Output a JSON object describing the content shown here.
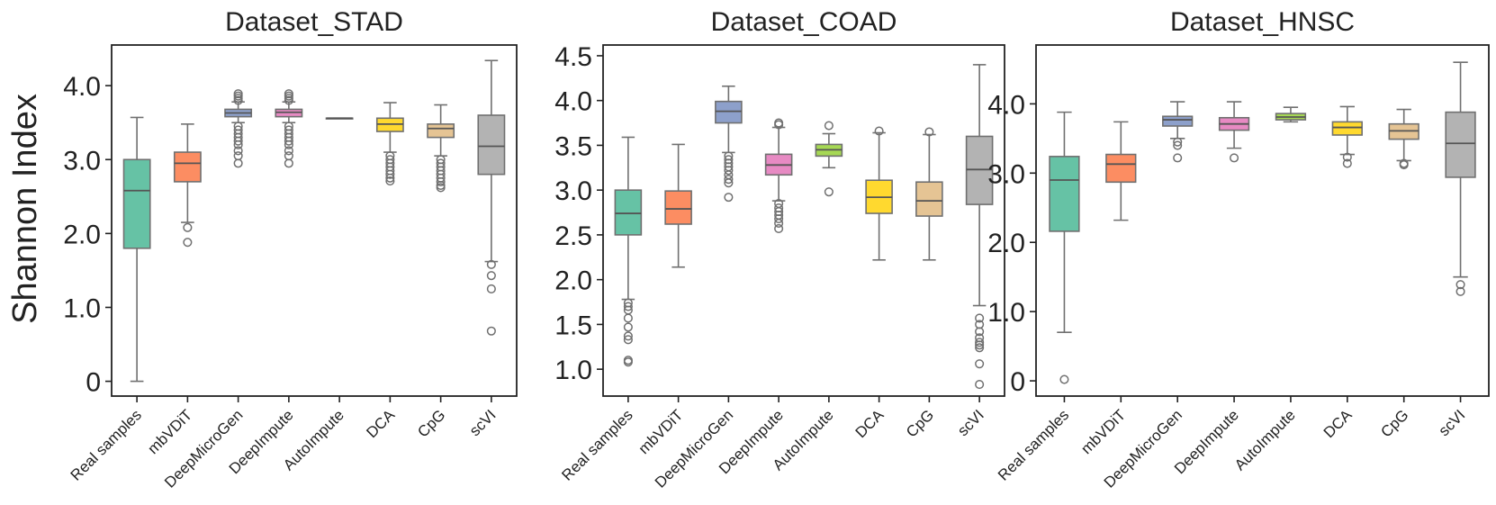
{
  "figure": {
    "ylabel": "Shannon Index"
  },
  "colors": {
    "Real samples": "#66c2a5",
    "mbVDiT": "#fc8d62",
    "DeepMicroGen": "#8da0cb",
    "DeepImpute": "#e78ac3",
    "AutoImpute": "#a6d854",
    "DCA": "#ffd92f",
    "CpG": "#e5c494",
    "scVI": "#b3b3b3",
    "median_line": "#555555",
    "whisker": "#707070",
    "axis": "#222222"
  },
  "chart_data": [
    {
      "type": "box",
      "title": "Dataset_STAD",
      "ylim": [
        -0.2,
        4.55
      ],
      "yticks": [
        0,
        1.0,
        2.0,
        3.0,
        4.0
      ],
      "ytick_labels": [
        "0",
        "1.0",
        "2.0",
        "3.0",
        "4.0"
      ],
      "categories": [
        "Real samples",
        "mbVDiT",
        "DeepMicroGen",
        "DeepImpute",
        "AutoImpute",
        "DCA",
        "CpG",
        "scVI"
      ],
      "boxes": [
        {
          "q1": 1.8,
          "median": 2.58,
          "q3": 3.0,
          "whisker_low": 0.0,
          "whisker_high": 3.57,
          "outliers": []
        },
        {
          "q1": 2.7,
          "median": 2.95,
          "q3": 3.1,
          "whisker_low": 2.15,
          "whisker_high": 3.48,
          "outliers": [
            2.08,
            1.88
          ]
        },
        {
          "q1": 3.58,
          "median": 3.63,
          "q3": 3.68,
          "whisker_low": 3.5,
          "whisker_high": 3.78,
          "outliers": [
            3.8,
            3.83,
            3.86,
            3.89,
            3.45,
            3.4,
            3.35,
            3.3,
            3.25,
            3.2,
            3.12,
            3.05,
            2.95
          ]
        },
        {
          "q1": 3.58,
          "median": 3.64,
          "q3": 3.68,
          "whisker_low": 3.5,
          "whisker_high": 3.78,
          "outliers": [
            3.8,
            3.83,
            3.86,
            3.89,
            3.45,
            3.4,
            3.35,
            3.3,
            3.25,
            3.2,
            3.12,
            3.05,
            2.95
          ]
        },
        {
          "q1": 3.56,
          "median": 3.56,
          "q3": 3.56,
          "whisker_low": 3.56,
          "whisker_high": 3.56,
          "outliers": []
        },
        {
          "q1": 3.38,
          "median": 3.48,
          "q3": 3.56,
          "whisker_low": 3.1,
          "whisker_high": 3.77,
          "outliers": [
            3.05,
            3.0,
            2.95,
            2.9,
            2.85,
            2.8,
            2.75,
            2.71
          ]
        },
        {
          "q1": 3.3,
          "median": 3.42,
          "q3": 3.48,
          "whisker_low": 3.05,
          "whisker_high": 3.74,
          "outliers": [
            3.0,
            2.95,
            2.9,
            2.85,
            2.8,
            2.75,
            2.7,
            2.65,
            2.62
          ]
        },
        {
          "q1": 2.8,
          "median": 3.18,
          "q3": 3.6,
          "whisker_low": 1.62,
          "whisker_high": 4.34,
          "outliers": [
            1.58,
            1.43,
            1.25,
            0.68
          ]
        }
      ]
    },
    {
      "type": "box",
      "title": "Dataset_COAD",
      "ylim": [
        0.7,
        4.62
      ],
      "yticks": [
        1.0,
        1.5,
        2.0,
        2.5,
        3.0,
        3.5,
        4.0,
        4.5
      ],
      "ytick_labels": [
        "1.0",
        "1.5",
        "2.0",
        "2.5",
        "3.0",
        "3.5",
        "4.0",
        "4.5"
      ],
      "categories": [
        "Real samples",
        "mbVDiT",
        "DeepMicroGen",
        "DeepImpute",
        "AutoImpute",
        "DCA",
        "CpG",
        "scVI"
      ],
      "boxes": [
        {
          "q1": 2.5,
          "median": 2.74,
          "q3": 3.0,
          "whisker_low": 1.78,
          "whisker_high": 3.59,
          "outliers": [
            1.74,
            1.7,
            1.66,
            1.57,
            1.47,
            1.37,
            1.33,
            1.1,
            1.08
          ]
        },
        {
          "q1": 2.62,
          "median": 2.79,
          "q3": 2.99,
          "whisker_low": 2.14,
          "whisker_high": 3.51,
          "outliers": []
        },
        {
          "q1": 3.75,
          "median": 3.88,
          "q3": 3.99,
          "whisker_low": 3.42,
          "whisker_high": 4.16,
          "outliers": [
            3.38,
            3.34,
            3.3,
            3.26,
            3.22,
            3.17,
            3.12,
            3.08,
            2.92
          ]
        },
        {
          "q1": 3.17,
          "median": 3.28,
          "q3": 3.4,
          "whisker_low": 2.88,
          "whisker_high": 3.7,
          "outliers": [
            3.73,
            3.75,
            2.85,
            2.8,
            2.76,
            2.72,
            2.68,
            2.63,
            2.57
          ]
        },
        {
          "q1": 3.38,
          "median": 3.45,
          "q3": 3.51,
          "whisker_low": 3.25,
          "whisker_high": 3.63,
          "outliers": [
            3.72,
            2.98
          ]
        },
        {
          "q1": 2.74,
          "median": 2.92,
          "q3": 3.11,
          "whisker_low": 2.22,
          "whisker_high": 3.64,
          "outliers": [
            3.66
          ]
        },
        {
          "q1": 2.71,
          "median": 2.88,
          "q3": 3.09,
          "whisker_low": 2.22,
          "whisker_high": 3.62,
          "outliers": [
            3.65
          ]
        },
        {
          "q1": 2.84,
          "median": 3.23,
          "q3": 3.6,
          "whisker_low": 1.71,
          "whisker_high": 4.4,
          "outliers": [
            1.57,
            1.5,
            1.42,
            1.35,
            1.3,
            1.27,
            1.24,
            1.06,
            0.83
          ]
        }
      ]
    },
    {
      "type": "box",
      "title": "Dataset_HNSC",
      "ylim": [
        -0.22,
        4.85
      ],
      "yticks": [
        0,
        1.0,
        2.0,
        3.0,
        4.0
      ],
      "ytick_labels": [
        "0",
        "1.0",
        "2.0",
        "3.0",
        "4.0"
      ],
      "categories": [
        "Real samples",
        "mbVDiT",
        "DeepMicroGen",
        "DeepImpute",
        "AutoImpute",
        "DCA",
        "CpG",
        "scVI"
      ],
      "boxes": [
        {
          "q1": 2.16,
          "median": 2.9,
          "q3": 3.24,
          "whisker_low": 0.7,
          "whisker_high": 3.88,
          "outliers": [
            0.02
          ]
        },
        {
          "q1": 2.87,
          "median": 3.13,
          "q3": 3.27,
          "whisker_low": 2.32,
          "whisker_high": 3.74,
          "outliers": []
        },
        {
          "q1": 3.68,
          "median": 3.77,
          "q3": 3.82,
          "whisker_low": 3.5,
          "whisker_high": 4.03,
          "outliers": [
            3.45,
            3.4,
            3.22
          ]
        },
        {
          "q1": 3.62,
          "median": 3.71,
          "q3": 3.8,
          "whisker_low": 3.36,
          "whisker_high": 4.03,
          "outliers": [
            3.22
          ]
        },
        {
          "q1": 3.77,
          "median": 3.81,
          "q3": 3.86,
          "whisker_low": 3.74,
          "whisker_high": 3.95,
          "outliers": []
        },
        {
          "q1": 3.55,
          "median": 3.66,
          "q3": 3.74,
          "whisker_low": 3.27,
          "whisker_high": 3.96,
          "outliers": [
            3.23,
            3.14
          ]
        },
        {
          "q1": 3.49,
          "median": 3.61,
          "q3": 3.71,
          "whisker_low": 3.18,
          "whisker_high": 3.92,
          "outliers": [
            3.14,
            3.12
          ]
        },
        {
          "q1": 2.94,
          "median": 3.43,
          "q3": 3.88,
          "whisker_low": 1.5,
          "whisker_high": 4.6,
          "outliers": [
            1.39,
            1.29
          ]
        }
      ]
    }
  ]
}
